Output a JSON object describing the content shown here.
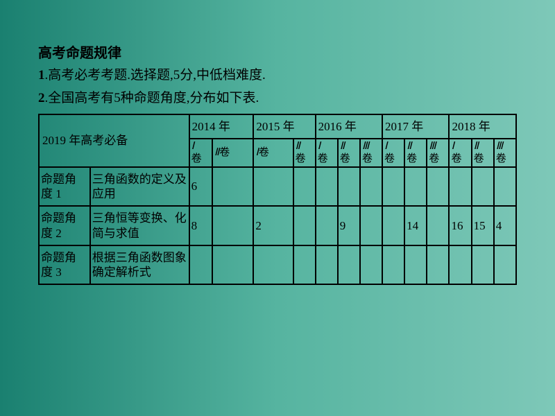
{
  "title": "高考命题规律",
  "line1_num": "1",
  "line1_text": ".高考必考考题.选择题,5分,中低档难度.",
  "line2_num": "2",
  "line2_text": ".全国高考有5种命题角度,分布如下表.",
  "header_main": "2019 年高考必备",
  "years": [
    "2014 年",
    "2015 年",
    "2016 年",
    "2017 年",
    "2018 年"
  ],
  "subs": {
    "y2014": [
      "Ⅰ卷",
      "Ⅱ卷"
    ],
    "y2015": [
      "Ⅰ卷",
      "Ⅱ卷"
    ],
    "y2016": [
      "Ⅰ卷",
      "Ⅱ卷",
      "Ⅲ卷"
    ],
    "y2017": [
      "Ⅰ卷",
      "Ⅱ卷",
      "Ⅲ卷"
    ],
    "y2018": [
      "Ⅰ卷",
      "Ⅱ卷",
      "Ⅲ卷"
    ]
  },
  "rows": [
    {
      "angle": "命题角度 1",
      "desc": "三角函数的定义及应用",
      "cells": [
        "6",
        "",
        "",
        "",
        "",
        "",
        "",
        "",
        "",
        "",
        "",
        "",
        ""
      ]
    },
    {
      "angle": "命题角度 2",
      "desc": "三角恒等变换、化简与求值",
      "cells": [
        "8",
        "",
        "2",
        "",
        "",
        "9",
        "",
        "",
        "14",
        "",
        "16",
        "15",
        "4"
      ]
    },
    {
      "angle": "命题角度 3",
      "desc": "根据三角函数图象确定解析式",
      "cells": [
        "",
        "",
        "",
        "",
        "",
        "",
        "",
        "",
        "",
        "",
        "",
        "",
        ""
      ]
    }
  ]
}
